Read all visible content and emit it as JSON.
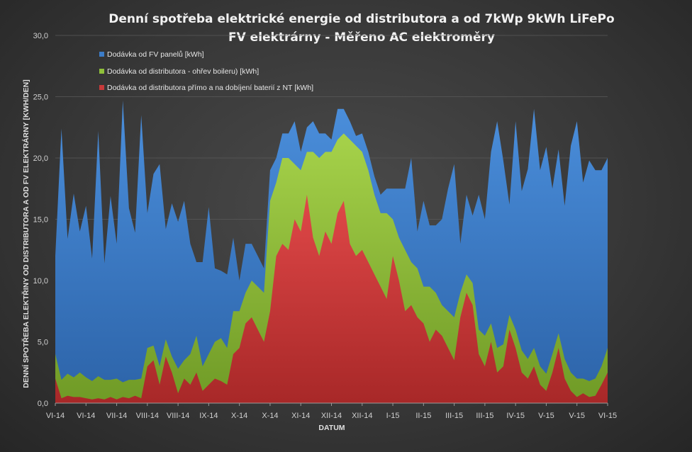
{
  "chart_data": {
    "type": "area",
    "stacked": true,
    "title_lines": [
      "Denní spotřeba  elektrické  energie  od  distributora  a  od  7kWp  9kWh  LiFePo",
      "FV elektrárny  - Měřeno  AC elektroměry"
    ],
    "xlabel": "DATUM",
    "ylabel": "DENNÍ SPOTŘEBA  ELEKTŘINY OD DISTRIBUTORA A OD FV ELEKTRÁRNY [KWH/DEN]",
    "ylim": [
      0,
      30
    ],
    "y_ticks": [
      "0,0",
      "5,0",
      "10,0",
      "15,0",
      "20,0",
      "25,0",
      "30,0"
    ],
    "x_tick_labels": [
      "VI-14",
      "VI-14",
      "VII-14",
      "VIII-14",
      "VIII-14",
      "IX-14",
      "X-14",
      "X-14",
      "XI-14",
      "XII-14",
      "XII-14",
      "I-15",
      "II-15",
      "III-15",
      "III-15",
      "IV-15",
      "V-15",
      "V-15",
      "VI-15"
    ],
    "grid": true,
    "legend_position": "top-left",
    "colors": {
      "fv": "#3c7cc8",
      "boiler": "#8fc03a",
      "direct": "#c83a3a"
    },
    "legend": [
      "Dodávka od FV panelů [kWh]",
      "Dodávka od distributora - ohřev boileru) [kWh]",
      "Dodávka od distributora přímo a na dobíjení baterií z NT [kWh]"
    ],
    "x_index": [
      0,
      4,
      8,
      12,
      16,
      20,
      24,
      28,
      32,
      36,
      40,
      44,
      48,
      52,
      56,
      60,
      64,
      68,
      72,
      76,
      80,
      84,
      88,
      92,
      96,
      100,
      104,
      108,
      112,
      116,
      120,
      124,
      128,
      132,
      136,
      140,
      144,
      148,
      152,
      156,
      160,
      164,
      168,
      172,
      176,
      180,
      184,
      188,
      192,
      196,
      200,
      204,
      208,
      212,
      216,
      220,
      224,
      228,
      232,
      236,
      240,
      244,
      248,
      252,
      256,
      260,
      264,
      268,
      272,
      276,
      280,
      284,
      288,
      292,
      296,
      300,
      304,
      308,
      312,
      316,
      320,
      324,
      328,
      332,
      336,
      340,
      344,
      348,
      352,
      356,
      360
    ],
    "series": [
      {
        "name": "Dodávka od distributora přímo a na dobíjení baterií z NT [kWh]",
        "values": [
          2.0,
          0.4,
          0.6,
          0.5,
          0.5,
          0.4,
          0.3,
          0.4,
          0.3,
          0.5,
          0.3,
          0.5,
          0.4,
          0.6,
          0.4,
          3.0,
          3.5,
          1.5,
          3.8,
          2.5,
          0.8,
          2.0,
          1.5,
          2.5,
          1.0,
          1.5,
          2.0,
          1.8,
          1.5,
          4.0,
          4.5,
          6.5,
          7.0,
          6.0,
          5.0,
          7.5,
          12.0,
          13.0,
          12.5,
          15.0,
          14.0,
          17.0,
          13.5,
          12.0,
          14.0,
          13.0,
          15.5,
          16.5,
          13.0,
          12.0,
          12.5,
          11.5,
          10.5,
          9.5,
          8.5,
          12.0,
          10.0,
          7.5,
          8.0,
          7.0,
          6.5,
          5.0,
          6.0,
          5.5,
          4.5,
          3.5,
          7.0,
          9.0,
          8.0,
          4.0,
          3.0,
          5.0,
          2.5,
          3.0,
          6.0,
          4.5,
          2.5,
          2.0,
          3.0,
          1.5,
          1.0,
          2.5,
          4.5,
          2.0,
          1.0,
          0.5,
          0.8,
          0.5,
          0.6,
          1.5,
          2.5
        ]
      },
      {
        "name": "Dodávka od distributora - ohřev boileru) [kWh]",
        "values": [
          2.0,
          1.5,
          1.8,
          1.6,
          2.0,
          1.7,
          1.5,
          1.8,
          1.6,
          1.4,
          1.7,
          1.2,
          1.5,
          1.3,
          1.6,
          1.5,
          1.2,
          1.5,
          1.4,
          1.3,
          2.0,
          1.5,
          2.5,
          3.0,
          2.0,
          2.5,
          3.0,
          3.5,
          3.0,
          3.5,
          3.0,
          2.5,
          3.0,
          3.5,
          4.0,
          9.0,
          6.0,
          7.0,
          7.5,
          4.5,
          5.0,
          3.5,
          7.0,
          8.0,
          6.5,
          7.5,
          6.0,
          5.5,
          8.5,
          9.0,
          8.0,
          7.5,
          6.5,
          6.0,
          7.0,
          3.0,
          3.5,
          5.0,
          3.5,
          4.0,
          3.0,
          4.5,
          3.0,
          2.5,
          3.0,
          3.5,
          2.0,
          1.5,
          1.8,
          2.0,
          2.5,
          1.5,
          2.0,
          1.8,
          1.2,
          1.5,
          1.8,
          1.6,
          1.5,
          1.5,
          1.4,
          1.5,
          1.2,
          1.6,
          1.5,
          1.5,
          1.2,
          1.3,
          1.4,
          1.5,
          2.0
        ]
      },
      {
        "name": "Dodávka od FV panelů [kWh]",
        "values": [
          8.0,
          20.5,
          11.0,
          15.0,
          11.5,
          14.0,
          10.0,
          20.0,
          9.5,
          15.0,
          11.0,
          23.0,
          14.0,
          12.0,
          21.5,
          11.0,
          14.0,
          16.5,
          9.0,
          12.5,
          12.0,
          13.0,
          9.0,
          6.0,
          8.5,
          12.0,
          6.0,
          5.5,
          6.0,
          6.0,
          2.5,
          4.0,
          3.0,
          2.5,
          2.0,
          2.5,
          2.0,
          2.0,
          2.0,
          3.5,
          1.5,
          2.0,
          2.5,
          2.0,
          1.5,
          1.0,
          2.5,
          2.0,
          1.5,
          0.8,
          1.5,
          1.5,
          1.5,
          1.5,
          2.0,
          2.5,
          4.0,
          5.0,
          8.5,
          3.0,
          7.0,
          5.0,
          5.5,
          7.0,
          10.0,
          12.5,
          4.0,
          6.5,
          5.5,
          11.0,
          9.5,
          14.0,
          18.5,
          15.0,
          9.0,
          17.0,
          13.0,
          15.5,
          19.5,
          16.0,
          18.5,
          13.5,
          15.0,
          12.5,
          18.5,
          21.0,
          16.0,
          18.0,
          17.0,
          16.0,
          15.5
        ]
      }
    ]
  }
}
